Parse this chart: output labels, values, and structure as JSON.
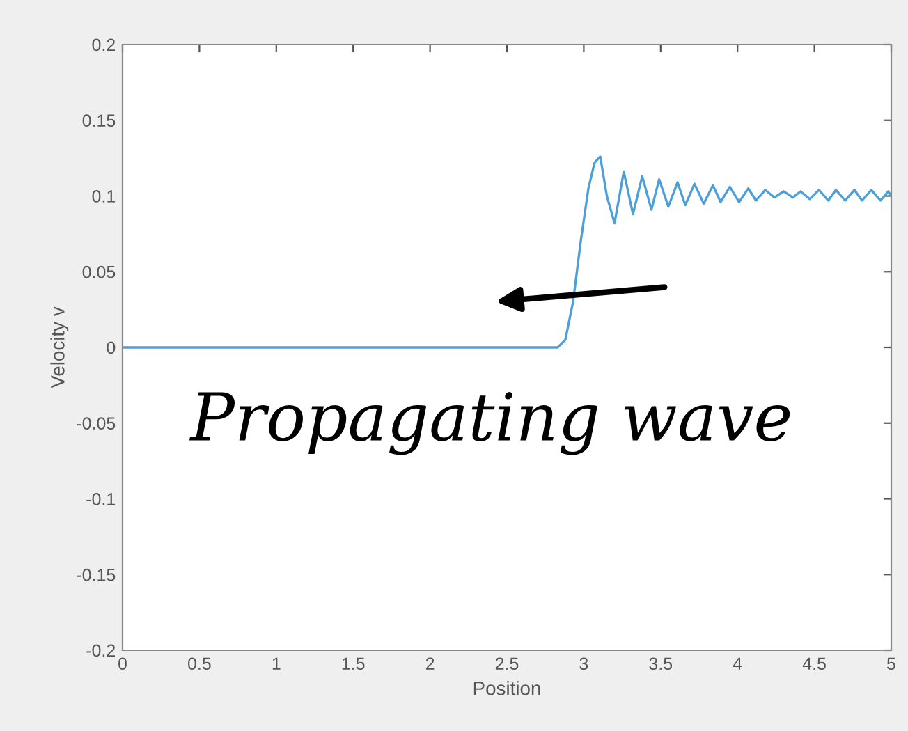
{
  "chart_data": {
    "type": "line",
    "xlabel": "Position",
    "ylabel": "Velocity v",
    "xlim": [
      0,
      5
    ],
    "ylim": [
      -0.2,
      0.2
    ],
    "xticks": [
      0,
      0.5,
      1,
      1.5,
      2,
      2.5,
      3,
      3.5,
      4,
      4.5,
      5
    ],
    "yticks": [
      -0.2,
      -0.15,
      -0.1,
      -0.05,
      0,
      0.05,
      0.1,
      0.15,
      0.2
    ],
    "grid": false,
    "marker": "none",
    "line_style": "solid",
    "annotations": [
      "Propagating wave"
    ],
    "series": [
      {
        "color": "#4d9fd8",
        "x": [
          0,
          2.83,
          2.88,
          2.93,
          2.98,
          3.03,
          3.07,
          3.107,
          3.15,
          3.2,
          3.26,
          3.32,
          3.38,
          3.44,
          3.49,
          3.55,
          3.61,
          3.66,
          3.72,
          3.78,
          3.84,
          3.89,
          3.95,
          4.01,
          4.07,
          4.12,
          4.18,
          4.24,
          4.3,
          4.36,
          4.41,
          4.47,
          4.53,
          4.59,
          4.64,
          4.7,
          4.76,
          4.81,
          4.87,
          4.93,
          4.98,
          5.0
        ],
        "values": [
          0,
          0,
          0.005,
          0.03,
          0.07,
          0.105,
          0.122,
          0.126,
          0.1,
          0.082,
          0.116,
          0.088,
          0.113,
          0.091,
          0.111,
          0.093,
          0.109,
          0.094,
          0.108,
          0.095,
          0.107,
          0.096,
          0.106,
          0.096,
          0.105,
          0.097,
          0.104,
          0.099,
          0.103,
          0.099,
          0.103,
          0.098,
          0.104,
          0.097,
          0.104,
          0.097,
          0.104,
          0.097,
          0.104,
          0.097,
          0.103,
          0.1
        ]
      }
    ]
  }
}
